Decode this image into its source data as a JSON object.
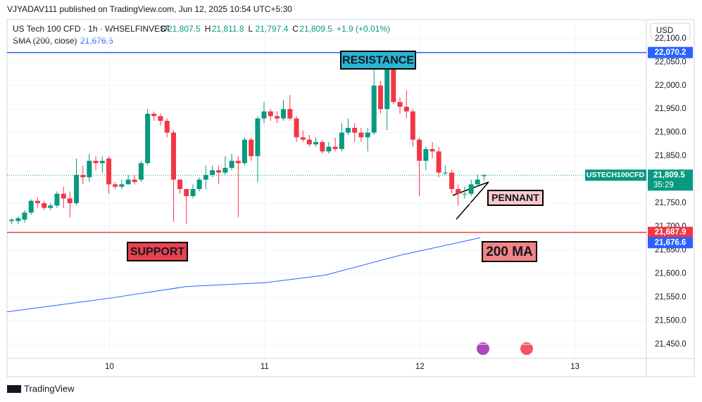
{
  "chart_data": {
    "type": "candlestick",
    "publisher": "VJYADAV111 published on TradingView.com, Jun 12, 2025 10:54 UTC+5:30",
    "title": "US Tech 100 CFD · 1h · WHSELFINVEST",
    "ohlc_legend": [
      {
        "label": "O",
        "text": "21,807.5"
      },
      {
        "label": "H",
        "text": "21,811.8"
      },
      {
        "label": "L",
        "text": "21,797.4"
      },
      {
        "label": "C",
        "text": "21,809.5"
      }
    ],
    "change": "+1.9 (+0.01%)",
    "currency": "USD",
    "footer": "TradingView",
    "up_color": "#089981",
    "down_color": "#f23645",
    "xlim": [
      9.34,
      13.46
    ],
    "xticks": [
      10,
      11,
      12,
      13
    ],
    "ylim": [
      21420,
      22140
    ],
    "yticks": [
      {
        "value": 21450,
        "label": "21,450.0"
      },
      {
        "value": 21500,
        "label": "21,500.0"
      },
      {
        "value": 21550,
        "label": "21,550.0"
      },
      {
        "value": 21600,
        "label": "21,600.0"
      },
      {
        "value": 21650,
        "label": "21,650.0"
      },
      {
        "value": 21700,
        "label": "21,700.0"
      },
      {
        "value": 21750,
        "label": "21,750.0"
      },
      {
        "value": 21800,
        "label": "21,800.0"
      },
      {
        "value": 21850,
        "label": "21,850.0"
      },
      {
        "value": 21900,
        "label": "21,900.0"
      },
      {
        "value": 21950,
        "label": "21,950.0"
      },
      {
        "value": 22000,
        "label": "22,000.0"
      },
      {
        "value": 22050,
        "label": "22,050.0"
      },
      {
        "value": 22100,
        "label": "22,100.0"
      }
    ],
    "candles": {
      "x": [
        9.37,
        9.412,
        9.453,
        9.495,
        9.537,
        9.579,
        9.62,
        9.662,
        9.704,
        9.745,
        9.787,
        9.829,
        9.87,
        9.912,
        9.954,
        9.996,
        10.037,
        10.079,
        10.121,
        10.162,
        10.204,
        10.246,
        10.287,
        10.329,
        10.371,
        10.413,
        10.454,
        10.496,
        10.538,
        10.579,
        10.621,
        10.663,
        10.704,
        10.746,
        10.788,
        10.83,
        10.871,
        10.913,
        10.955,
        10.996,
        11.038,
        11.08,
        11.121,
        11.163,
        11.205,
        11.247,
        11.288,
        11.33,
        11.372,
        11.413,
        11.455,
        11.497,
        11.538,
        11.58,
        11.622,
        11.664,
        11.705,
        11.747,
        11.789,
        11.83,
        11.872,
        11.914,
        11.955,
        11.997,
        12.039,
        12.081,
        12.122,
        12.164,
        12.206,
        12.247,
        12.289,
        12.331,
        12.372,
        12.414
      ],
      "open": [
        21712,
        21712,
        21715,
        21730,
        21755,
        21750,
        21740,
        21745,
        21770,
        21760,
        21750,
        21810,
        21805,
        21840,
        21835,
        21845,
        21790,
        21785,
        21790,
        21800,
        21800,
        21835,
        21940,
        21935,
        21925,
        21900,
        21800,
        21780,
        21765,
        21780,
        21800,
        21810,
        21820,
        21815,
        21825,
        21840,
        21835,
        21885,
        21850,
        21930,
        21945,
        21935,
        21930,
        21950,
        21930,
        21890,
        21885,
        21875,
        21880,
        21860,
        21870,
        21865,
        21900,
        21910,
        21900,
        21890,
        21900,
        22000,
        21950,
        22040,
        21965,
        21955,
        21945,
        21885,
        21840,
        21865,
        21860,
        21815,
        21815,
        21780,
        21770,
        21770,
        21790,
        21807.5
      ],
      "high": [
        21718,
        21722,
        21735,
        21758,
        21762,
        21755,
        21750,
        21775,
        21785,
        21775,
        21845,
        21830,
        21855,
        21850,
        21850,
        21850,
        21795,
        21800,
        21810,
        21810,
        21840,
        21950,
        21945,
        21940,
        21930,
        21905,
        21800,
        21780,
        21790,
        21805,
        21830,
        21830,
        21830,
        21850,
        21855,
        21850,
        21890,
        21890,
        21935,
        21965,
        21950,
        21945,
        21970,
        21980,
        21935,
        21905,
        21895,
        21890,
        21885,
        21880,
        21890,
        21920,
        21930,
        21920,
        21910,
        21910,
        22070,
        22010,
        22045,
        22045,
        21975,
        21990,
        21950,
        21890,
        21870,
        21880,
        21870,
        21830,
        21820,
        21790,
        21785,
        21800,
        21810,
        21811.8
      ],
      "low": [
        21705,
        21705,
        21708,
        21725,
        21740,
        21735,
        21735,
        21740,
        21740,
        21720,
        21745,
        21790,
        21795,
        21820,
        21815,
        21770,
        21780,
        21780,
        21790,
        21790,
        21795,
        21830,
        21925,
        21915,
        21890,
        21710,
        21770,
        21705,
        21760,
        21775,
        21780,
        21805,
        21790,
        21810,
        21820,
        21720,
        21830,
        21840,
        21795,
        21920,
        21925,
        21920,
        21925,
        21925,
        21880,
        21880,
        21870,
        21870,
        21855,
        21855,
        21860,
        21860,
        21895,
        21880,
        21880,
        21860,
        21895,
        21940,
        21905,
        21960,
        21940,
        21930,
        21870,
        21765,
        21820,
        21845,
        21805,
        21810,
        21770,
        21745,
        21760,
        21765,
        21785,
        21797.4
      ],
      "close": [
        21715,
        21718,
        21730,
        21755,
        21750,
        21740,
        21745,
        21770,
        21760,
        21750,
        21810,
        21805,
        21840,
        21835,
        21840,
        21790,
        21785,
        21790,
        21800,
        21795,
        21835,
        21940,
        21935,
        21925,
        21900,
        21800,
        21780,
        21765,
        21780,
        21800,
        21810,
        21820,
        21815,
        21825,
        21840,
        21835,
        21885,
        21850,
        21930,
        21945,
        21935,
        21930,
        21950,
        21930,
        21890,
        21885,
        21875,
        21880,
        21860,
        21870,
        21865,
        21900,
        21910,
        21900,
        21890,
        21900,
        22000,
        21950,
        22040,
        21965,
        21955,
        21945,
        21885,
        21840,
        21865,
        21860,
        21815,
        21815,
        21780,
        21770,
        21770,
        21790,
        21800,
        21809.5
      ]
    },
    "sma": {
      "label": "SMA (200, close)",
      "value_text": "21,676.6",
      "color": "#2962ff",
      "x": [
        9.34,
        10,
        10.5,
        11,
        11.39,
        11.87,
        12.39
      ],
      "values": [
        21519,
        21548,
        21573,
        21581,
        21597,
        21639,
        21676.6
      ]
    },
    "hlines": [
      {
        "value": 22070.2,
        "label": "22,070.2",
        "color": "#2962ff"
      },
      {
        "value": 21687.9,
        "label": "21,687.9",
        "color": "#f23645"
      }
    ],
    "sma_price_label": {
      "value": 21676.6,
      "label": "21,676.6"
    },
    "last_price": {
      "value": 21809.5,
      "label": "21,809.5",
      "symbol": "USTECH100CFD",
      "countdown": "35:29"
    },
    "annotations": [
      "RESISTANCE",
      "SUPPORT",
      "PENNANT",
      "200 MA"
    ]
  }
}
